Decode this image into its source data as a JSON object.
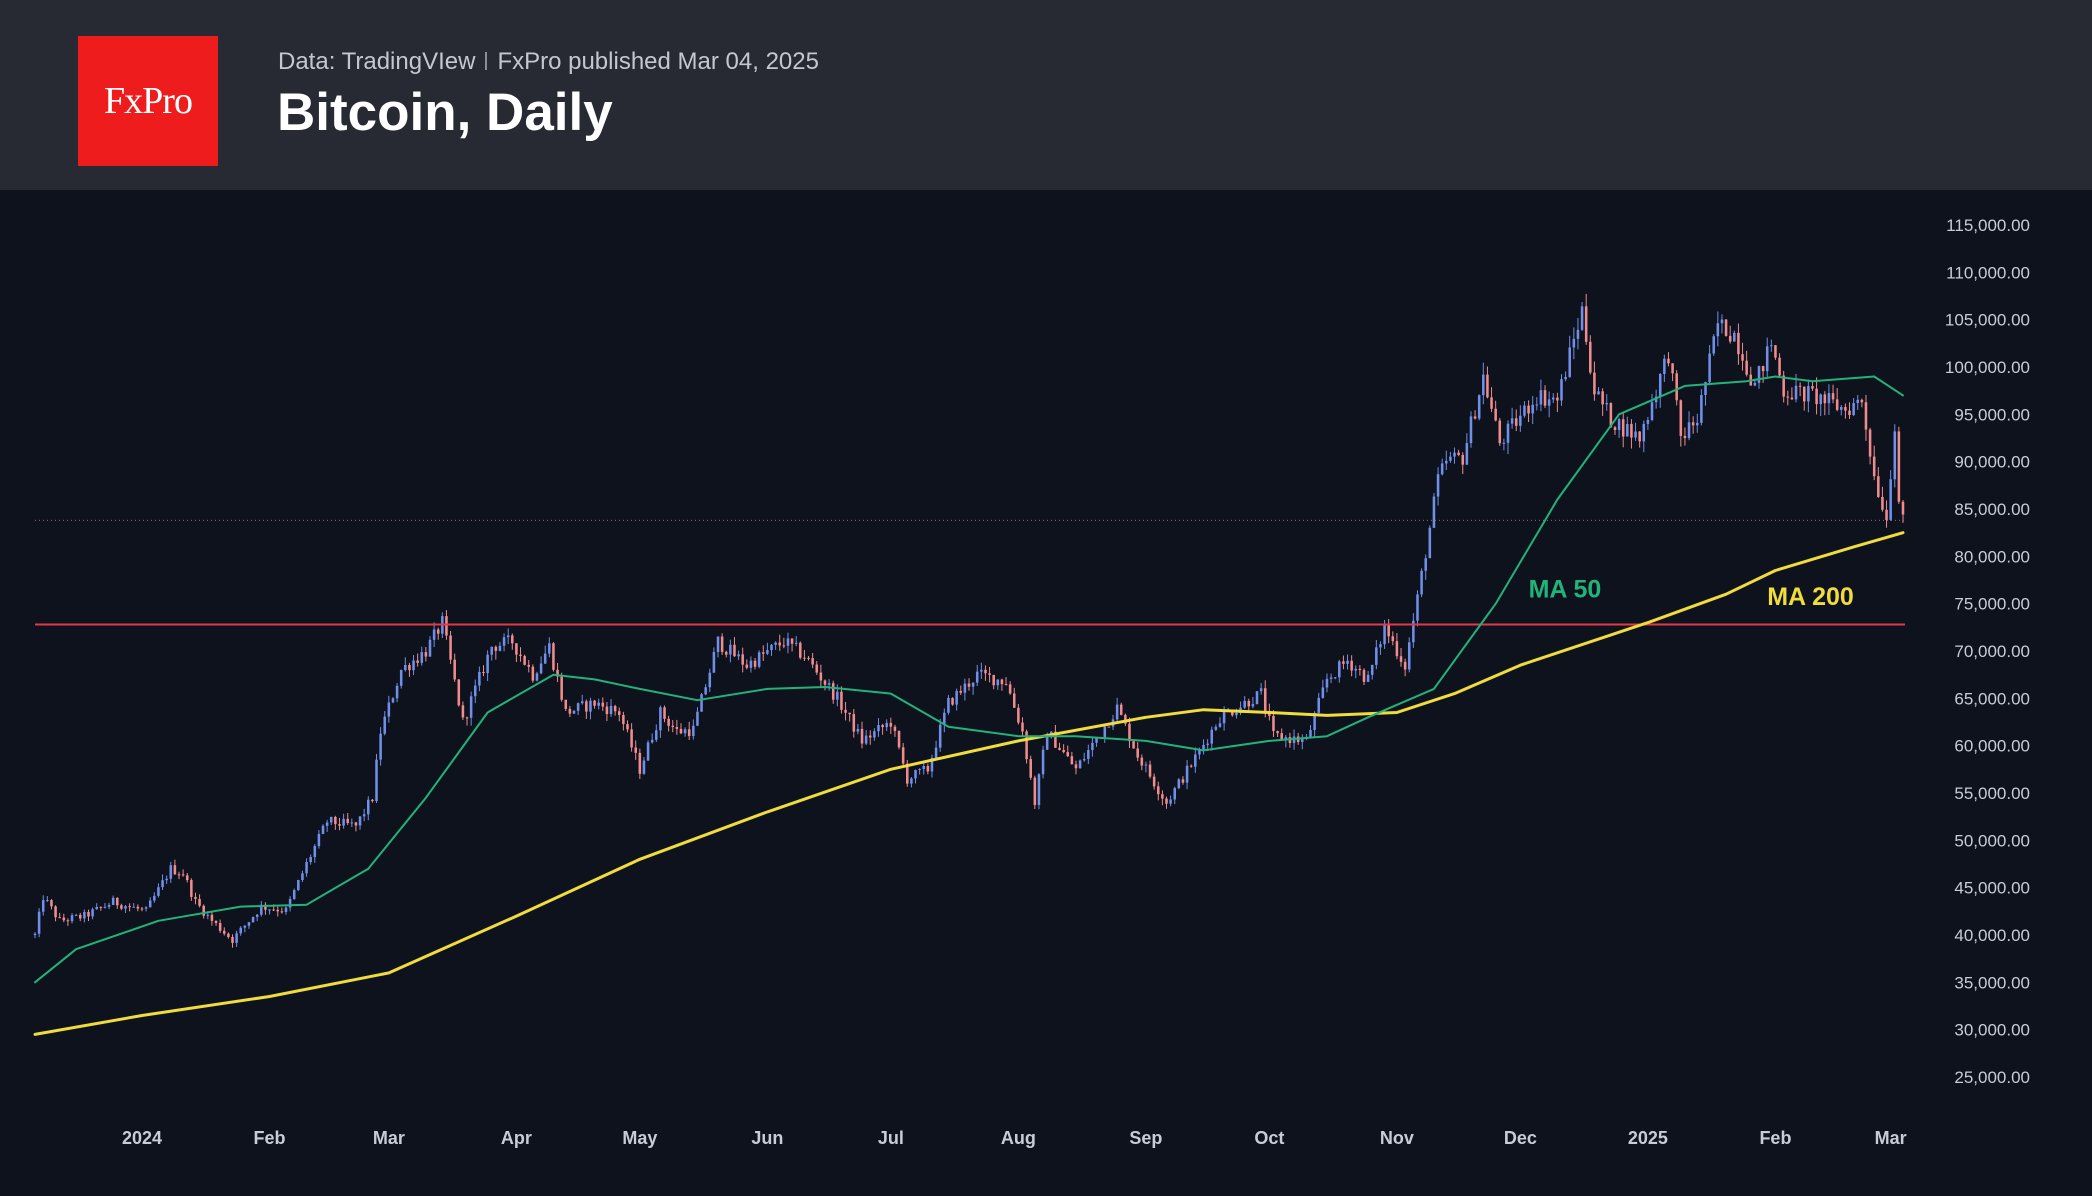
{
  "header": {
    "logo_text": "FxPro",
    "data_source": "Data: TradingVIew",
    "published": "FxPro published Mar 04, 2025",
    "title": "Bitcoin, Daily"
  },
  "colors": {
    "background": "#0d121d",
    "header_bg": "#272a33",
    "logo_bg": "#ee1c1c",
    "candle_up": "#6f8fe8",
    "candle_down": "#f08c8c",
    "ma50": "#22b37a",
    "ma200": "#f0dc3c",
    "resistance": "#e03a4a",
    "axis_text": "#c8ccd4"
  },
  "chart_data": {
    "type": "candlestick",
    "timeframe": "Daily",
    "x_range": [
      "2023-12-06",
      "2025-03-04"
    ],
    "ylim": [
      22000,
      118000
    ],
    "y_ticks": [
      "115,000.00",
      "110,000.00",
      "105,000.00",
      "100,000.00",
      "95,000.00",
      "90,000.00",
      "85,000.00",
      "80,000.00",
      "75,000.00",
      "70,000.00",
      "65,000.00",
      "60,000.00",
      "55,000.00",
      "50,000.00",
      "45,000.00",
      "40,000.00",
      "35,000.00",
      "30,000.00",
      "25,000.00"
    ],
    "x_ticks": [
      {
        "label": "2024",
        "date": "2024-01-01"
      },
      {
        "label": "Feb",
        "date": "2024-02-01"
      },
      {
        "label": "Mar",
        "date": "2024-03-01"
      },
      {
        "label": "Apr",
        "date": "2024-04-01"
      },
      {
        "label": "May",
        "date": "2024-05-01"
      },
      {
        "label": "Jun",
        "date": "2024-06-01"
      },
      {
        "label": "Jul",
        "date": "2024-07-01"
      },
      {
        "label": "Aug",
        "date": "2024-08-01"
      },
      {
        "label": "Sep",
        "date": "2024-09-01"
      },
      {
        "label": "Oct",
        "date": "2024-10-01"
      },
      {
        "label": "Nov",
        "date": "2024-11-01"
      },
      {
        "label": "Dec",
        "date": "2024-12-01"
      },
      {
        "label": "2025",
        "date": "2025-01-01"
      },
      {
        "label": "Feb",
        "date": "2025-02-01"
      },
      {
        "label": "Mar",
        "date": "2025-03-01"
      }
    ],
    "close_path": [
      [
        "2023-12-06",
        40000
      ],
      [
        "2023-12-08",
        44000
      ],
      [
        "2023-12-12",
        41500
      ],
      [
        "2023-12-18",
        42000
      ],
      [
        "2023-12-25",
        43500
      ],
      [
        "2024-01-02",
        42500
      ],
      [
        "2024-01-08",
        47000
      ],
      [
        "2024-01-11",
        46500
      ],
      [
        "2024-01-14",
        43500
      ],
      [
        "2024-01-18",
        41500
      ],
      [
        "2024-01-23",
        39500
      ],
      [
        "2024-01-30",
        43000
      ],
      [
        "2024-02-05",
        42600
      ],
      [
        "2024-02-10",
        47500
      ],
      [
        "2024-02-15",
        52000
      ],
      [
        "2024-02-22",
        51500
      ],
      [
        "2024-02-26",
        54500
      ],
      [
        "2024-02-28",
        61500
      ],
      [
        "2024-03-04",
        68000
      ],
      [
        "2024-03-10",
        70000
      ],
      [
        "2024-03-14",
        73000
      ],
      [
        "2024-03-19",
        62500
      ],
      [
        "2024-03-26",
        70500
      ],
      [
        "2024-03-31",
        71000
      ],
      [
        "2024-04-05",
        67500
      ],
      [
        "2024-04-09",
        70500
      ],
      [
        "2024-04-13",
        63500
      ],
      [
        "2024-04-20",
        64500
      ],
      [
        "2024-04-26",
        63500
      ],
      [
        "2024-05-01",
        57500
      ],
      [
        "2024-05-06",
        63500
      ],
      [
        "2024-05-10",
        61500
      ],
      [
        "2024-05-14",
        61700
      ],
      [
        "2024-05-20",
        71000
      ],
      [
        "2024-05-27",
        68500
      ],
      [
        "2024-06-05",
        71000
      ],
      [
        "2024-06-10",
        69500
      ],
      [
        "2024-06-18",
        65000
      ],
      [
        "2024-06-24",
        60500
      ],
      [
        "2024-07-01",
        62500
      ],
      [
        "2024-07-05",
        56500
      ],
      [
        "2024-07-10",
        57500
      ],
      [
        "2024-07-15",
        64500
      ],
      [
        "2024-07-22",
        67500
      ],
      [
        "2024-07-29",
        66800
      ],
      [
        "2024-08-02",
        61500
      ],
      [
        "2024-08-05",
        54000
      ],
      [
        "2024-08-08",
        61500
      ],
      [
        "2024-08-15",
        57500
      ],
      [
        "2024-08-25",
        64000
      ],
      [
        "2024-08-30",
        59000
      ],
      [
        "2024-09-06",
        54000
      ],
      [
        "2024-09-12",
        58000
      ],
      [
        "2024-09-19",
        63000
      ],
      [
        "2024-09-29",
        65500
      ],
      [
        "2024-10-02",
        61000
      ],
      [
        "2024-10-10",
        60500
      ],
      [
        "2024-10-15",
        67000
      ],
      [
        "2024-10-20",
        69000
      ],
      [
        "2024-10-25",
        67000
      ],
      [
        "2024-10-29",
        72500
      ],
      [
        "2024-11-03",
        68500
      ],
      [
        "2024-11-06",
        75500
      ],
      [
        "2024-11-11",
        88000
      ],
      [
        "2024-11-13",
        90000
      ],
      [
        "2024-11-17",
        90500
      ],
      [
        "2024-11-22",
        99000
      ],
      [
        "2024-11-26",
        92000
      ],
      [
        "2024-12-05",
        97000
      ],
      [
        "2024-12-10",
        96500
      ],
      [
        "2024-12-16",
        106000
      ],
      [
        "2024-12-19",
        97500
      ],
      [
        "2024-12-23",
        94500
      ],
      [
        "2024-12-30",
        92500
      ],
      [
        "2025-01-06",
        101500
      ],
      [
        "2025-01-09",
        92500
      ],
      [
        "2025-01-13",
        94500
      ],
      [
        "2025-01-18",
        104500
      ],
      [
        "2025-01-22",
        103500
      ],
      [
        "2025-01-27",
        98000
      ],
      [
        "2025-01-31",
        102500
      ],
      [
        "2025-02-03",
        97500
      ],
      [
        "2025-02-10",
        97000
      ],
      [
        "2025-02-18",
        95500
      ],
      [
        "2025-02-22",
        96500
      ],
      [
        "2025-02-25",
        88500
      ],
      [
        "2025-02-28",
        84000
      ],
      [
        "2025-03-02",
        94000
      ],
      [
        "2025-03-03",
        86000
      ],
      [
        "2025-03-04",
        83500
      ]
    ],
    "ma50": [
      [
        "2023-12-06",
        35000
      ],
      [
        "2023-12-16",
        38500
      ],
      [
        "2024-01-05",
        41500
      ],
      [
        "2024-01-25",
        43000
      ],
      [
        "2024-02-10",
        43200
      ],
      [
        "2024-02-25",
        47000
      ],
      [
        "2024-03-10",
        54500
      ],
      [
        "2024-03-25",
        63500
      ],
      [
        "2024-04-10",
        67500
      ],
      [
        "2024-04-20",
        67000
      ],
      [
        "2024-05-01",
        66000
      ],
      [
        "2024-05-15",
        64800
      ],
      [
        "2024-06-01",
        66000
      ],
      [
        "2024-06-15",
        66200
      ],
      [
        "2024-07-01",
        65500
      ],
      [
        "2024-07-15",
        62000
      ],
      [
        "2024-08-01",
        61000
      ],
      [
        "2024-08-15",
        61000
      ],
      [
        "2024-09-01",
        60500
      ],
      [
        "2024-09-15",
        59500
      ],
      [
        "2024-10-01",
        60500
      ],
      [
        "2024-10-15",
        61000
      ],
      [
        "2024-10-25",
        63000
      ],
      [
        "2024-11-10",
        66000
      ],
      [
        "2024-11-25",
        75000
      ],
      [
        "2024-12-10",
        86000
      ],
      [
        "2024-12-25",
        95000
      ],
      [
        "2025-01-10",
        98000
      ],
      [
        "2025-01-25",
        98500
      ],
      [
        "2025-02-01",
        99000
      ],
      [
        "2025-02-10",
        98500
      ],
      [
        "2025-02-25",
        99000
      ],
      [
        "2025-03-04",
        97000
      ]
    ],
    "ma200": [
      [
        "2023-12-06",
        29500
      ],
      [
        "2024-01-01",
        31500
      ],
      [
        "2024-02-01",
        33500
      ],
      [
        "2024-03-01",
        36000
      ],
      [
        "2024-04-01",
        42000
      ],
      [
        "2024-05-01",
        48000
      ],
      [
        "2024-06-01",
        53000
      ],
      [
        "2024-07-01",
        57500
      ],
      [
        "2024-08-01",
        60500
      ],
      [
        "2024-09-01",
        63000
      ],
      [
        "2024-09-15",
        63800
      ],
      [
        "2024-10-01",
        63500
      ],
      [
        "2024-10-15",
        63200
      ],
      [
        "2024-11-01",
        63500
      ],
      [
        "2024-11-15",
        65500
      ],
      [
        "2024-12-01",
        68500
      ],
      [
        "2025-01-01",
        73000
      ],
      [
        "2025-01-20",
        76000
      ],
      [
        "2025-02-01",
        78500
      ],
      [
        "2025-02-20",
        81000
      ],
      [
        "2025-03-04",
        82500
      ]
    ],
    "resistance_level": 72800,
    "current_price": 83800,
    "annotations": [
      {
        "text": "MA 50",
        "date": "2024-12-03",
        "value": 76600,
        "series": "ma50"
      },
      {
        "text": "MA 200",
        "date": "2025-01-30",
        "value": 75800,
        "series": "ma200"
      }
    ],
    "legend": "none",
    "grid": false,
    "y_axis_position": "right"
  }
}
